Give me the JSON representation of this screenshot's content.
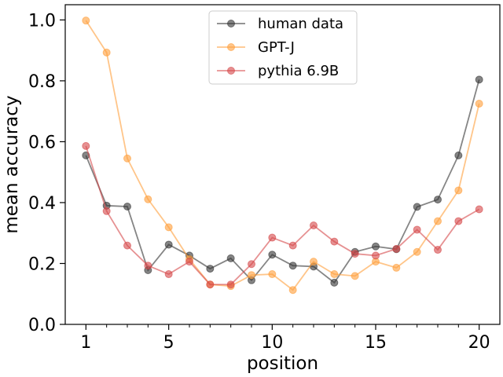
{
  "chart_data": {
    "type": "line",
    "xlabel": "position",
    "ylabel": "mean accuracy",
    "xlim": [
      0.0,
      21.0
    ],
    "ylim": [
      0.0,
      1.05
    ],
    "xticks_major": [
      1,
      5,
      10,
      15,
      20
    ],
    "xticks_minor": [
      2,
      3,
      4,
      6,
      7,
      8,
      9,
      11,
      12,
      13,
      14,
      16,
      17,
      18,
      19
    ],
    "yticks": [
      0.0,
      0.2,
      0.4,
      0.6,
      0.8,
      1.0
    ],
    "ytick_labels": [
      "0.0",
      "0.2",
      "0.4",
      "0.6",
      "0.8",
      "1.0"
    ],
    "grid": false,
    "legend_position": "top-center",
    "x": [
      1,
      2,
      3,
      4,
      5,
      6,
      7,
      8,
      9,
      10,
      11,
      12,
      13,
      14,
      15,
      16,
      17,
      18,
      19,
      20
    ],
    "series": [
      {
        "name": "human data",
        "color": "#333333",
        "values": [
          0.555,
          0.39,
          0.387,
          0.178,
          0.262,
          0.226,
          0.183,
          0.217,
          0.145,
          0.229,
          0.193,
          0.19,
          0.137,
          0.238,
          0.256,
          0.247,
          0.386,
          0.41,
          0.555,
          0.804
        ]
      },
      {
        "name": "GPT-J",
        "color": "#ff9f3a",
        "values": [
          0.998,
          0.893,
          0.545,
          0.411,
          0.319,
          0.214,
          0.131,
          0.126,
          0.162,
          0.165,
          0.113,
          0.206,
          0.165,
          0.159,
          0.206,
          0.186,
          0.238,
          0.339,
          0.44,
          0.725
        ]
      },
      {
        "name": "pythia 6.9B",
        "color": "#d6474a",
        "values": [
          0.586,
          0.372,
          0.259,
          0.193,
          0.165,
          0.206,
          0.131,
          0.131,
          0.198,
          0.285,
          0.259,
          0.325,
          0.272,
          0.232,
          0.226,
          0.248,
          0.311,
          0.245,
          0.339,
          0.378
        ]
      }
    ]
  }
}
